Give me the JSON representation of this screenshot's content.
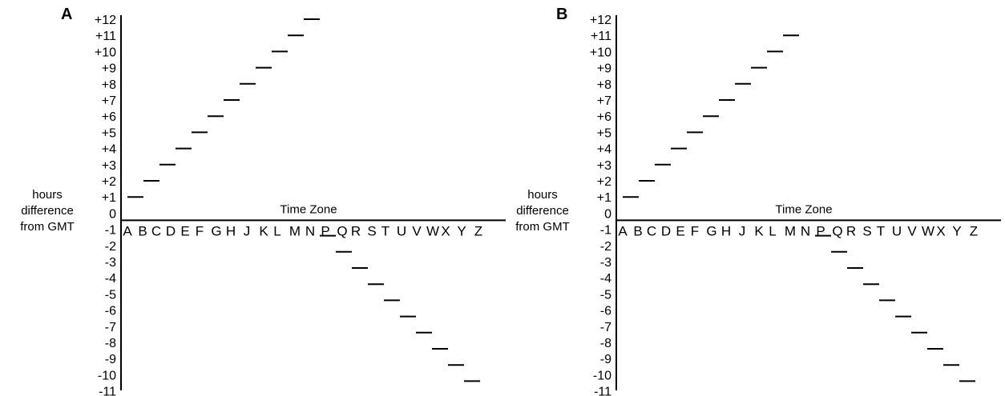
{
  "chart_data": [
    {
      "panel": "A",
      "type": "scatter",
      "marker": "horizontal-dash",
      "xlabel": "Time Zone",
      "ylabel": [
        "hours",
        "difference",
        "from GMT"
      ],
      "categories": [
        "A",
        "B",
        "C",
        "D",
        "E",
        "F",
        "G",
        "H",
        "J",
        "K",
        "L",
        "M",
        "N",
        "P",
        "Q",
        "R",
        "S",
        "T",
        "U",
        "V",
        "W",
        "X",
        "Y",
        "Z"
      ],
      "yticks": [
        "+12",
        "+11",
        "+10",
        "+9",
        "+8",
        "+7",
        "+6",
        "+5",
        "+4",
        "+3",
        "+2",
        "+1",
        "0",
        "-1",
        "-2",
        "-3",
        "-4",
        "-5",
        "-6",
        "-7",
        "-8",
        "-9",
        "-10",
        "-11"
      ],
      "ylim": [
        -11,
        12
      ],
      "x": [
        "A",
        "B",
        "C",
        "D",
        "E",
        "F",
        "G",
        "H",
        "J",
        "K",
        "L",
        "M",
        "N",
        "P",
        "Q",
        "R",
        "S",
        "T",
        "U",
        "V",
        "W",
        "X",
        "Y",
        "Z"
      ],
      "values": [
        1,
        2,
        3,
        4,
        5,
        6,
        7,
        8,
        9,
        10,
        11,
        12,
        -1,
        -2,
        -3,
        -4,
        -5,
        -6,
        -7,
        -8,
        -9,
        -10,
        -11,
        -12
      ]
    },
    {
      "panel": "B",
      "type": "scatter",
      "marker": "horizontal-dash",
      "xlabel": "Time Zone",
      "ylabel": [
        "hours",
        "difference",
        "from GMT"
      ],
      "categories": [
        "A",
        "B",
        "C",
        "D",
        "E",
        "F",
        "G",
        "H",
        "J",
        "K",
        "L",
        "M",
        "N",
        "P",
        "Q",
        "R",
        "S",
        "T",
        "U",
        "V",
        "W",
        "X",
        "Y",
        "Z"
      ],
      "yticks": [
        "+12",
        "+11",
        "+10",
        "+9",
        "+8",
        "+7",
        "+6",
        "+5",
        "+4",
        "+3",
        "+2",
        "+1",
        "0",
        "-1",
        "-2",
        "-3",
        "-4",
        "-5",
        "-6",
        "-7",
        "-8",
        "-9",
        "-10",
        "-11"
      ],
      "ylim": [
        -11,
        12
      ],
      "x": [
        "A",
        "B",
        "C",
        "D",
        "E",
        "F",
        "G",
        "H",
        "J",
        "K",
        "L",
        "M",
        "N",
        "P",
        "Q",
        "R",
        "S",
        "T",
        "U",
        "V",
        "W",
        "X",
        "Y",
        "Z"
      ],
      "values": [
        1,
        2,
        3,
        4,
        5,
        6,
        7,
        8,
        9,
        10,
        11,
        null,
        -1,
        -2,
        -3,
        -4,
        -5,
        -6,
        -7,
        -8,
        -9,
        -10,
        -11,
        -12
      ]
    }
  ]
}
